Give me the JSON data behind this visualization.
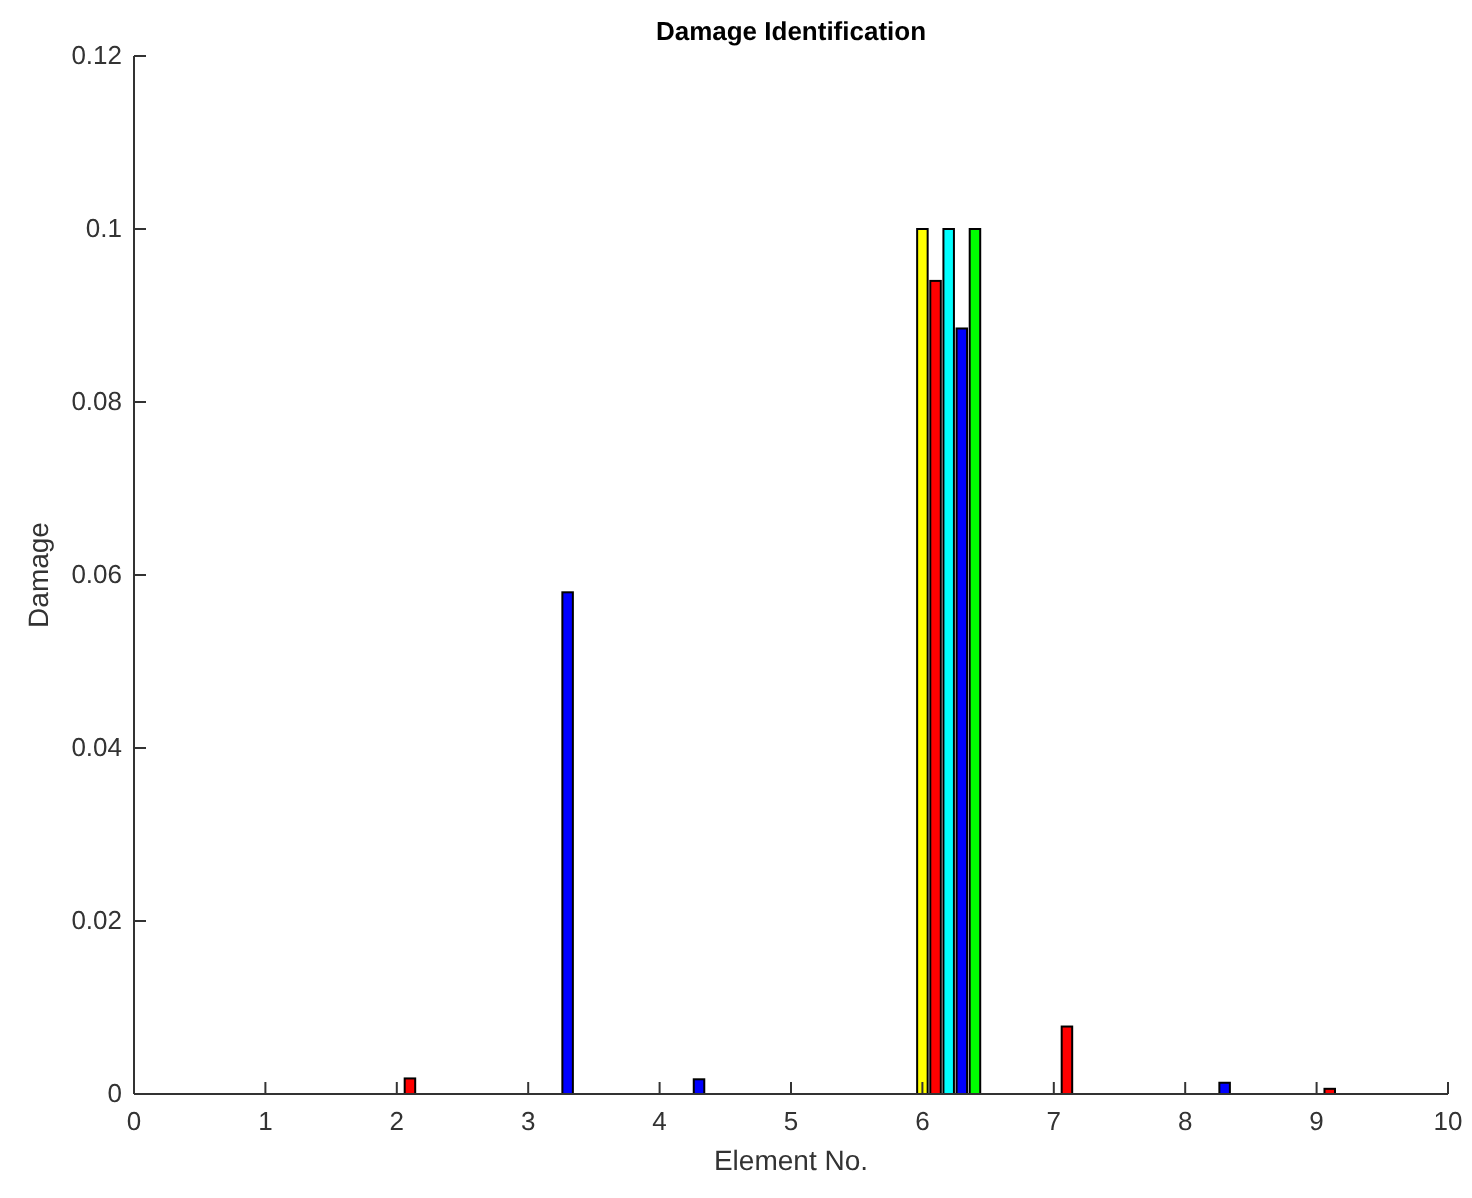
{
  "chart_data": {
    "type": "bar",
    "title": "Damage Identification",
    "xlabel": "Element No.",
    "ylabel": "Damage",
    "xlim": [
      0,
      10
    ],
    "xticks": [
      0,
      1,
      2,
      3,
      4,
      5,
      6,
      7,
      8,
      9,
      10
    ],
    "ylim": [
      0,
      0.12
    ],
    "yticks": [
      0,
      0.02,
      0.04,
      0.06,
      0.08,
      0.1,
      0.12
    ],
    "series": [
      {
        "color": "#ffff00",
        "x": [
          1,
          2,
          3,
          4,
          5,
          6,
          7,
          8,
          9
        ],
        "values": [
          0,
          0,
          0,
          0,
          0,
          0.1,
          0,
          0,
          0
        ]
      },
      {
        "color": "#ff0000",
        "x": [
          1.1,
          2.1,
          3.1,
          4.1,
          5.1,
          6.1,
          7.1,
          8.1,
          9.1
        ],
        "values": [
          0,
          0.0018,
          0,
          0,
          0,
          0.094,
          0.0078,
          0,
          0.0006
        ]
      },
      {
        "color": "#00ffff",
        "x": [
          1.2,
          2.2,
          3.2,
          4.2,
          5.2,
          6.2,
          7.2,
          8.2,
          9.2
        ],
        "values": [
          0,
          0,
          0,
          0,
          0,
          0.1,
          0,
          0,
          0
        ]
      },
      {
        "color": "#0000ff",
        "x": [
          1.3,
          2.3,
          3.3,
          4.3,
          5.3,
          6.3,
          7.3,
          8.3,
          9.3
        ],
        "values": [
          0,
          0,
          0.058,
          0.0017,
          0,
          0.0885,
          0,
          0.0013,
          0
        ]
      },
      {
        "color": "#00ff00",
        "x": [
          1.4,
          2.4,
          3.4,
          4.4,
          5.4,
          6.4,
          7.4,
          8.4,
          9.4
        ],
        "values": [
          0,
          0,
          0,
          0,
          0,
          0.1,
          0,
          0,
          0
        ]
      }
    ]
  }
}
